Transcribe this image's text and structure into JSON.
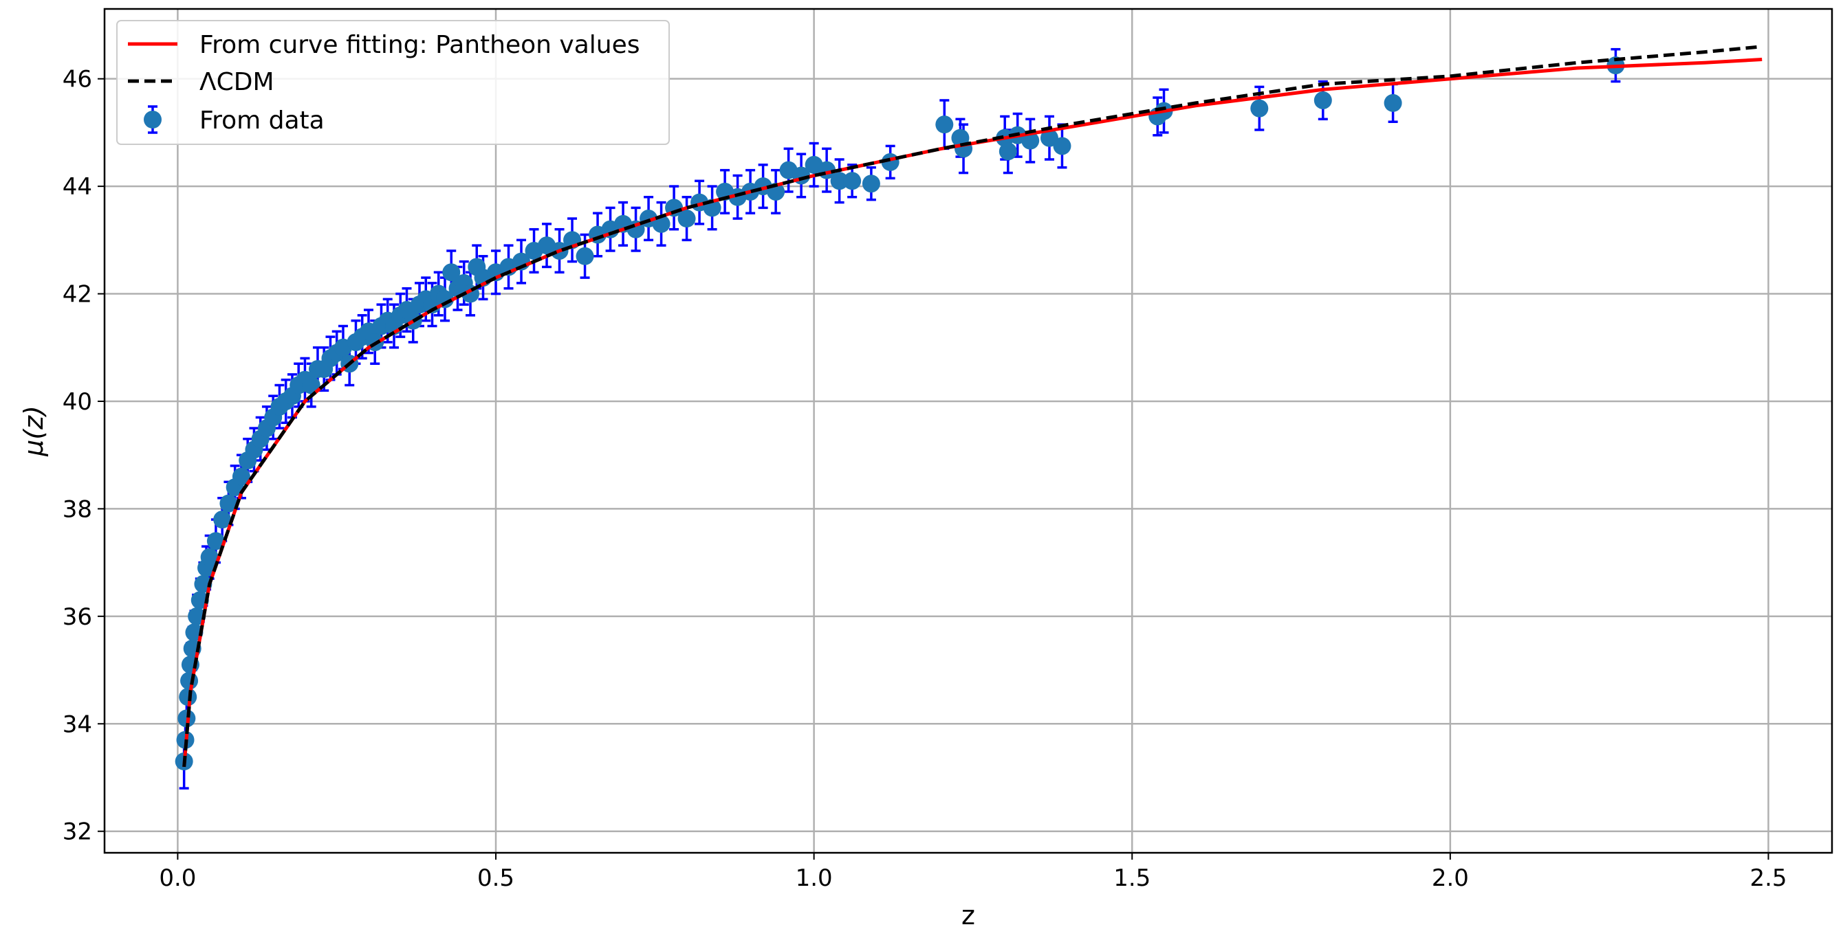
{
  "chart_data": {
    "type": "scatter",
    "xlabel": "z",
    "ylabel": "μ(z)",
    "xlim": [
      -0.115,
      2.6
    ],
    "ylim": [
      31.6,
      47.3
    ],
    "xticks": [
      0.0,
      0.5,
      1.0,
      1.5,
      2.0,
      2.5
    ],
    "xtick_labels": [
      "0.0",
      "0.5",
      "1.0",
      "1.5",
      "2.0",
      "2.5"
    ],
    "yticks": [
      32,
      34,
      36,
      38,
      40,
      42,
      44,
      46
    ],
    "ytick_labels": [
      "32",
      "34",
      "36",
      "38",
      "40",
      "42",
      "44",
      "46"
    ],
    "grid": true,
    "legend_position": "upper-left",
    "colors": {
      "fit": "#ff0000",
      "lcdm": "#000000",
      "points": "#1f77b4",
      "errorbars": "#0000ff",
      "grid": "#b0b0b0"
    },
    "series": [
      {
        "name": "From curve fitting: Pantheon values",
        "kind": "line",
        "style": "solid",
        "x": [
          0.01,
          0.02,
          0.05,
          0.1,
          0.2,
          0.3,
          0.4,
          0.5,
          0.6,
          0.7,
          0.8,
          0.9,
          1.0,
          1.2,
          1.4,
          1.6,
          1.8,
          2.0,
          2.2,
          2.4,
          2.49
        ],
        "y": [
          33.2,
          34.6,
          36.6,
          38.3,
          40.0,
          41.0,
          41.7,
          42.3,
          42.8,
          43.2,
          43.6,
          43.9,
          44.2,
          44.7,
          45.1,
          45.5,
          45.8,
          46.0,
          46.2,
          46.3,
          46.36
        ]
      },
      {
        "name": "ΛCDM",
        "kind": "line",
        "style": "dashed",
        "x": [
          0.01,
          0.02,
          0.05,
          0.1,
          0.2,
          0.3,
          0.4,
          0.5,
          0.6,
          0.7,
          0.8,
          0.9,
          1.0,
          1.2,
          1.4,
          1.6,
          1.8,
          2.0,
          2.2,
          2.4,
          2.49
        ],
        "y": [
          33.2,
          34.6,
          36.6,
          38.3,
          40.0,
          41.0,
          41.7,
          42.3,
          42.8,
          43.2,
          43.6,
          43.9,
          44.2,
          44.7,
          45.15,
          45.55,
          45.9,
          46.05,
          46.3,
          46.5,
          46.6
        ]
      },
      {
        "name": "From data",
        "kind": "errorbar-scatter",
        "points": [
          [
            0.01,
            33.3,
            0.5
          ],
          [
            0.012,
            33.7,
            0.5
          ],
          [
            0.014,
            34.1,
            0.5
          ],
          [
            0.016,
            34.5,
            0.4
          ],
          [
            0.018,
            34.8,
            0.4
          ],
          [
            0.02,
            35.1,
            0.4
          ],
          [
            0.023,
            35.4,
            0.4
          ],
          [
            0.026,
            35.7,
            0.4
          ],
          [
            0.03,
            36.0,
            0.4
          ],
          [
            0.035,
            36.3,
            0.4
          ],
          [
            0.04,
            36.6,
            0.4
          ],
          [
            0.045,
            36.9,
            0.4
          ],
          [
            0.05,
            37.1,
            0.4
          ],
          [
            0.06,
            37.4,
            0.4
          ],
          [
            0.07,
            37.8,
            0.4
          ],
          [
            0.08,
            38.1,
            0.4
          ],
          [
            0.09,
            38.4,
            0.4
          ],
          [
            0.1,
            38.6,
            0.4
          ],
          [
            0.11,
            38.9,
            0.4
          ],
          [
            0.12,
            39.1,
            0.4
          ],
          [
            0.13,
            39.3,
            0.4
          ],
          [
            0.14,
            39.5,
            0.4
          ],
          [
            0.15,
            39.7,
            0.4
          ],
          [
            0.16,
            39.9,
            0.4
          ],
          [
            0.17,
            40.0,
            0.4
          ],
          [
            0.18,
            40.1,
            0.4
          ],
          [
            0.19,
            40.3,
            0.4
          ],
          [
            0.2,
            40.4,
            0.4
          ],
          [
            0.21,
            40.3,
            0.4
          ],
          [
            0.22,
            40.6,
            0.4
          ],
          [
            0.23,
            40.6,
            0.4
          ],
          [
            0.24,
            40.8,
            0.4
          ],
          [
            0.25,
            40.9,
            0.4
          ],
          [
            0.26,
            41.0,
            0.4
          ],
          [
            0.27,
            40.7,
            0.4
          ],
          [
            0.28,
            41.1,
            0.4
          ],
          [
            0.29,
            41.2,
            0.4
          ],
          [
            0.3,
            41.3,
            0.4
          ],
          [
            0.31,
            41.1,
            0.4
          ],
          [
            0.32,
            41.4,
            0.4
          ],
          [
            0.33,
            41.5,
            0.4
          ],
          [
            0.34,
            41.4,
            0.4
          ],
          [
            0.35,
            41.6,
            0.4
          ],
          [
            0.36,
            41.7,
            0.4
          ],
          [
            0.37,
            41.5,
            0.4
          ],
          [
            0.38,
            41.8,
            0.4
          ],
          [
            0.39,
            41.9,
            0.4
          ],
          [
            0.4,
            41.8,
            0.4
          ],
          [
            0.41,
            42.0,
            0.4
          ],
          [
            0.42,
            41.9,
            0.4
          ],
          [
            0.43,
            42.4,
            0.4
          ],
          [
            0.44,
            42.1,
            0.4
          ],
          [
            0.45,
            42.2,
            0.4
          ],
          [
            0.46,
            42.0,
            0.4
          ],
          [
            0.47,
            42.5,
            0.4
          ],
          [
            0.48,
            42.3,
            0.4
          ],
          [
            0.5,
            42.4,
            0.4
          ],
          [
            0.52,
            42.5,
            0.4
          ],
          [
            0.54,
            42.6,
            0.4
          ],
          [
            0.56,
            42.8,
            0.4
          ],
          [
            0.58,
            42.9,
            0.4
          ],
          [
            0.6,
            42.8,
            0.4
          ],
          [
            0.62,
            43.0,
            0.4
          ],
          [
            0.64,
            42.7,
            0.4
          ],
          [
            0.66,
            43.1,
            0.4
          ],
          [
            0.68,
            43.2,
            0.4
          ],
          [
            0.7,
            43.3,
            0.4
          ],
          [
            0.72,
            43.2,
            0.4
          ],
          [
            0.74,
            43.4,
            0.4
          ],
          [
            0.76,
            43.3,
            0.4
          ],
          [
            0.78,
            43.6,
            0.4
          ],
          [
            0.8,
            43.4,
            0.4
          ],
          [
            0.82,
            43.7,
            0.4
          ],
          [
            0.84,
            43.6,
            0.4
          ],
          [
            0.86,
            43.9,
            0.4
          ],
          [
            0.88,
            43.8,
            0.4
          ],
          [
            0.9,
            43.9,
            0.4
          ],
          [
            0.92,
            44.0,
            0.4
          ],
          [
            0.94,
            43.9,
            0.4
          ],
          [
            0.96,
            44.3,
            0.4
          ],
          [
            0.98,
            44.2,
            0.4
          ],
          [
            1.0,
            44.4,
            0.4
          ],
          [
            1.02,
            44.3,
            0.4
          ],
          [
            1.04,
            44.1,
            0.4
          ],
          [
            1.06,
            44.1,
            0.3
          ],
          [
            1.09,
            44.05,
            0.3
          ],
          [
            1.12,
            44.45,
            0.3
          ],
          [
            1.205,
            45.15,
            0.45
          ],
          [
            1.23,
            44.9,
            0.35
          ],
          [
            1.235,
            44.7,
            0.45
          ],
          [
            1.3,
            44.9,
            0.4
          ],
          [
            1.305,
            44.65,
            0.4
          ],
          [
            1.32,
            44.95,
            0.4
          ],
          [
            1.34,
            44.85,
            0.4
          ],
          [
            1.37,
            44.9,
            0.4
          ],
          [
            1.39,
            44.75,
            0.4
          ],
          [
            1.54,
            45.3,
            0.35
          ],
          [
            1.55,
            45.4,
            0.4
          ],
          [
            1.7,
            45.45,
            0.4
          ],
          [
            1.8,
            45.6,
            0.35
          ],
          [
            1.91,
            45.55,
            0.35
          ],
          [
            2.26,
            46.25,
            0.3
          ]
        ]
      }
    ]
  }
}
